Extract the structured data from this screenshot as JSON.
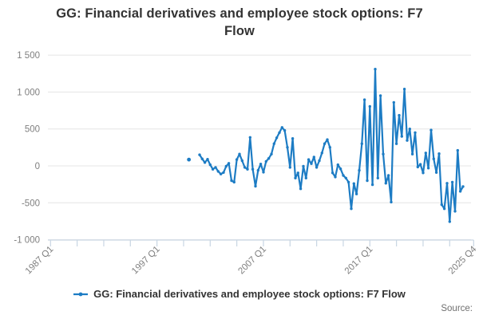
{
  "footer": {
    "source_label": "Source:"
  },
  "chart_data": {
    "type": "line",
    "title": "GG: Financial derivatives and employee stock options: F7 Flow",
    "title_lines": [
      "GG: Financial derivatives and employee stock options: F7",
      "Flow"
    ],
    "legend_position": "bottom",
    "grid": true,
    "colors": {
      "line": "#1d7cc4",
      "grid": "#e4e4e4",
      "axis": "#c9d6e3",
      "axis_text": "#7f7f7f"
    },
    "y_axis": {
      "lim": [
        -1000,
        1500
      ],
      "ticks": [
        {
          "value": 1500,
          "label": "1 500"
        },
        {
          "value": 1000,
          "label": "1 000"
        },
        {
          "value": 500,
          "label": "500"
        },
        {
          "value": 0,
          "label": "0"
        },
        {
          "value": -500,
          "label": "-500"
        },
        {
          "value": -1000,
          "label": "-1 000"
        }
      ]
    },
    "x_axis": {
      "range": [
        "1987 Q1",
        "2025 Q4"
      ],
      "tick_quarter_indices": [
        0,
        10,
        20,
        30,
        40,
        50,
        60,
        70,
        80,
        90,
        100,
        110,
        120,
        130,
        140,
        150,
        159
      ],
      "labels": [
        {
          "qi": 0,
          "label": "1987 Q1"
        },
        {
          "qi": 40,
          "label": "1997 Q1"
        },
        {
          "qi": 80,
          "label": "2007 Q1"
        },
        {
          "qi": 120,
          "label": "2017 Q1"
        },
        {
          "qi": 159,
          "label": "2025 Q4"
        }
      ]
    },
    "isolated_point": {
      "quarter": "2000 Q1",
      "value": 85
    },
    "series": [
      {
        "name": "GG: Financial derivatives and employee stock options: F7 Flow",
        "start_quarter": "2001 Q1",
        "values": [
          150,
          95,
          45,
          90,
          15,
          -45,
          -20,
          -75,
          -110,
          -90,
          -5,
          35,
          -200,
          -220,
          85,
          160,
          70,
          -20,
          -45,
          385,
          -45,
          -275,
          -60,
          25,
          -85,
          60,
          100,
          160,
          300,
          380,
          450,
          520,
          480,
          250,
          -20,
          370,
          -165,
          -95,
          -310,
          -5,
          -165,
          85,
          30,
          120,
          -20,
          70,
          175,
          300,
          355,
          250,
          -95,
          -150,
          15,
          -40,
          -130,
          -165,
          -220,
          -580,
          -240,
          -380,
          -60,
          300,
          895,
          -200,
          805,
          -255,
          1310,
          -165,
          950,
          160,
          -235,
          -130,
          -490,
          860,
          300,
          685,
          400,
          1040,
          345,
          500,
          160,
          450,
          -15,
          20,
          -95,
          175,
          -30,
          485,
          95,
          -90,
          165,
          -525,
          -580,
          -235,
          -755,
          -220,
          -615,
          210,
          -345,
          -280
        ]
      }
    ]
  }
}
